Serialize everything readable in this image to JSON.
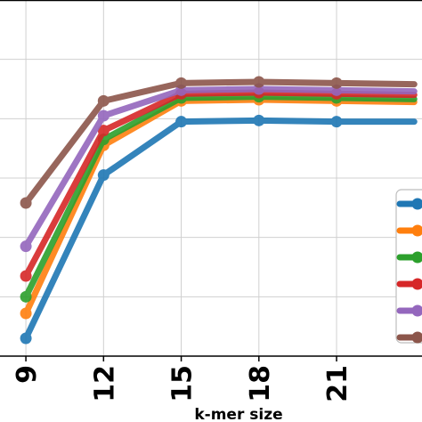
{
  "chart_data": {
    "type": "line",
    "title": "",
    "xlabel": "k-mer size",
    "ylabel": "",
    "x": [
      9,
      12,
      15,
      18,
      21,
      24
    ],
    "x_tick_labels": [
      "9",
      "12",
      "15",
      "18",
      "21"
    ],
    "xlim": [
      8.0,
      24.3
    ],
    "ylim": [
      0,
      6
    ],
    "grid": true,
    "legend": {
      "placement": "right",
      "entries": 6,
      "labels_visible": false
    },
    "series": [
      {
        "color": "#1f77b4",
        "values": [
          0.3,
          3.05,
          3.95,
          3.97,
          3.95,
          3.95
        ]
      },
      {
        "color": "#ff7f0e",
        "values": [
          0.72,
          3.55,
          4.3,
          4.32,
          4.3,
          4.28
        ]
      },
      {
        "color": "#2ca02c",
        "values": [
          1.0,
          3.65,
          4.35,
          4.37,
          4.35,
          4.33
        ]
      },
      {
        "color": "#d62728",
        "values": [
          1.35,
          3.8,
          4.42,
          4.44,
          4.42,
          4.4
        ]
      },
      {
        "color": "#9467bd",
        "values": [
          1.85,
          4.05,
          4.48,
          4.5,
          4.48,
          4.46
        ]
      },
      {
        "color": "#8c564b",
        "values": [
          2.58,
          4.3,
          4.6,
          4.62,
          4.6,
          4.58
        ]
      }
    ]
  }
}
